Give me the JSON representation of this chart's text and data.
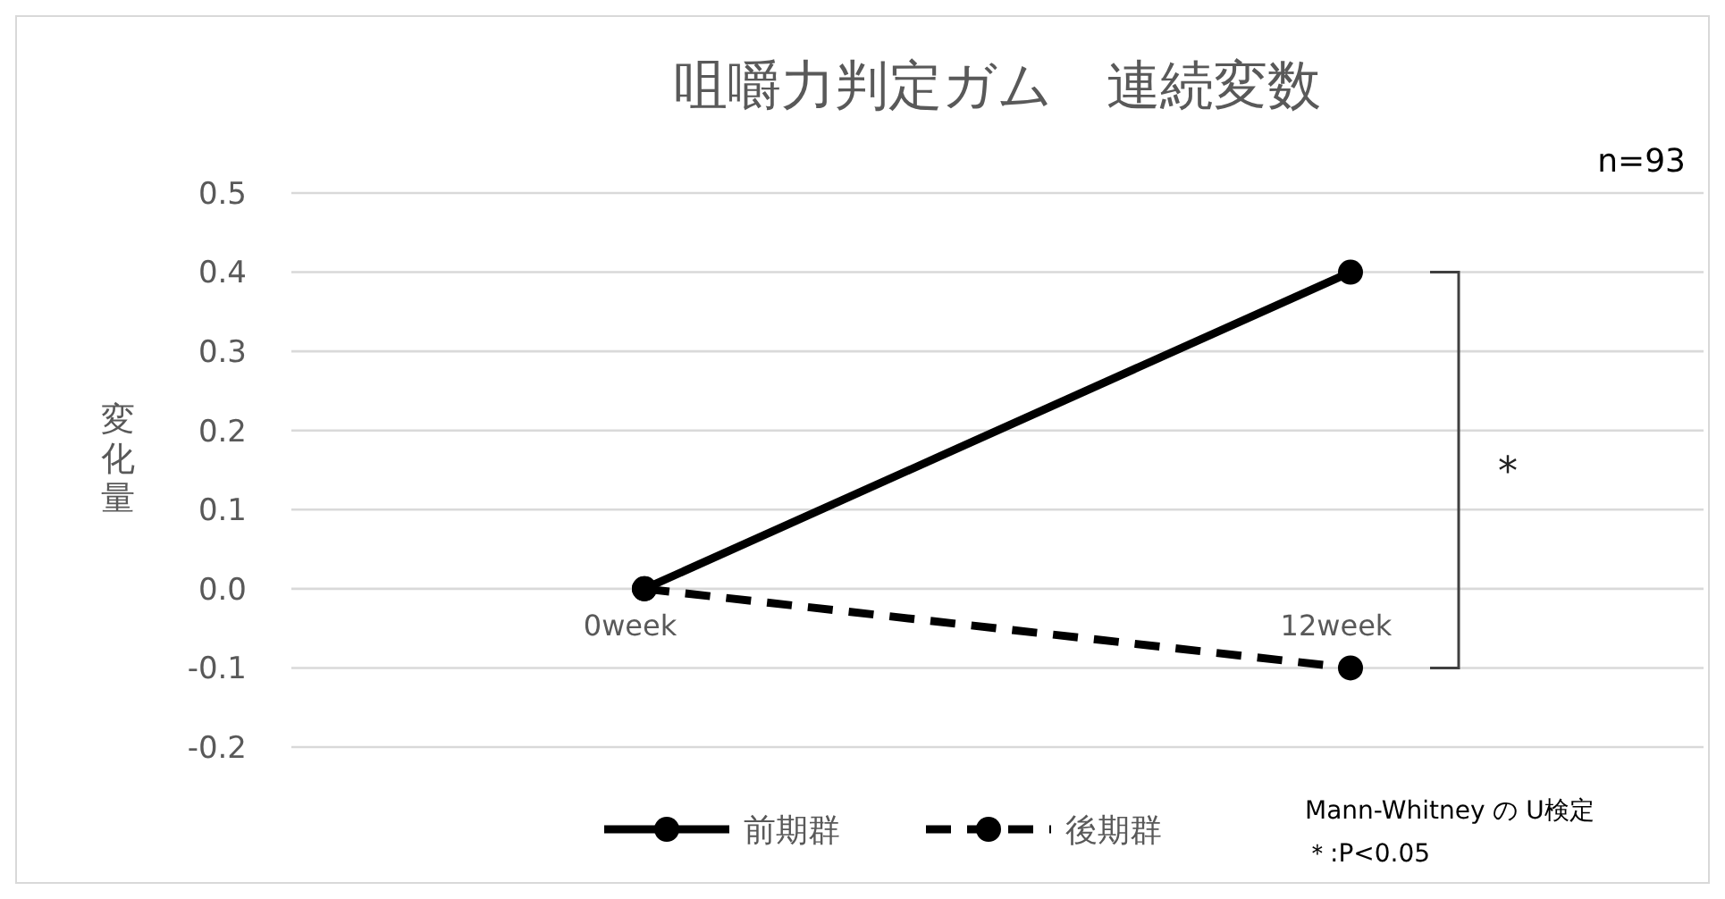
{
  "chart_data": {
    "type": "line",
    "title": "咀嚼力判定ガム　連続変数",
    "ylabel": "変化量",
    "categories": [
      "0week",
      "12week"
    ],
    "series": [
      {
        "name": "前期群",
        "color": "#000000",
        "values": [
          0,
          0.4
        ],
        "line_style": "solid"
      },
      {
        "name": "後期群",
        "color": "#000000",
        "values": [
          0,
          -0.1
        ],
        "line_style": "dashed"
      }
    ],
    "ylim": [
      -0.2,
      0.5
    ],
    "yticks": [
      {
        "value": -0.2,
        "label": "-0.2"
      },
      {
        "value": -0.1,
        "label": "-0.1"
      },
      {
        "value": 0,
        "label": "0.0"
      },
      0.1,
      0.2,
      0.3,
      0.4,
      0.5
    ],
    "grid": "y",
    "legend": "bottom",
    "marker": "circle",
    "annotations": [
      "n=93",
      "*",
      "Mann-Whitney の U検定",
      "＊:P<0.05"
    ]
  }
}
